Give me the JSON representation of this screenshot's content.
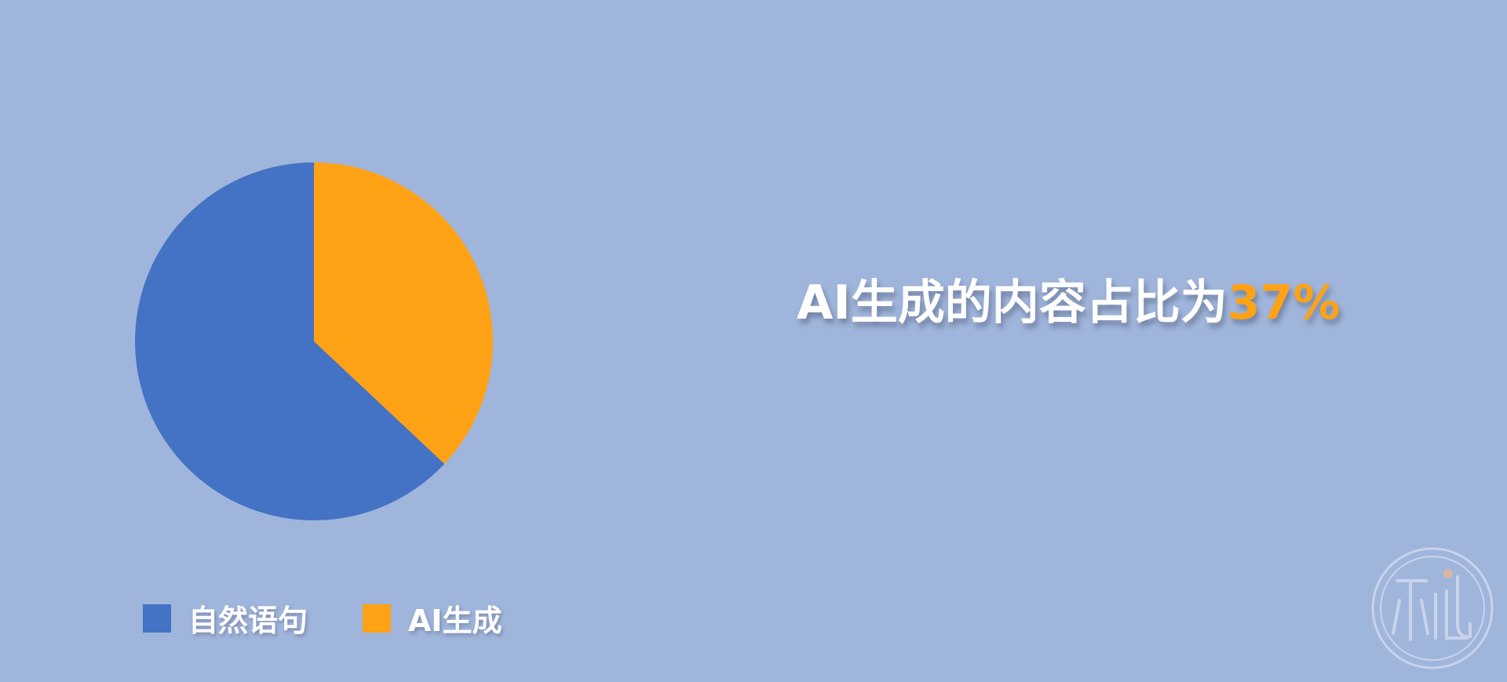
{
  "headline": {
    "text": "AI生成的内容占比为",
    "percent": "37%"
  },
  "chart_data": {
    "type": "pie",
    "categories": [
      "自然语句",
      "AI生成"
    ],
    "values": [
      63,
      37
    ],
    "colors": [
      "#4472c4",
      "#ffa216"
    ],
    "start_angle_deg": 0,
    "direction": "clockwise",
    "legend_position": "bottom"
  },
  "colors": {
    "background": "#a0b5db",
    "accent": "#ffa216"
  },
  "watermark": {
    "icon": "seal-logo-icon"
  }
}
